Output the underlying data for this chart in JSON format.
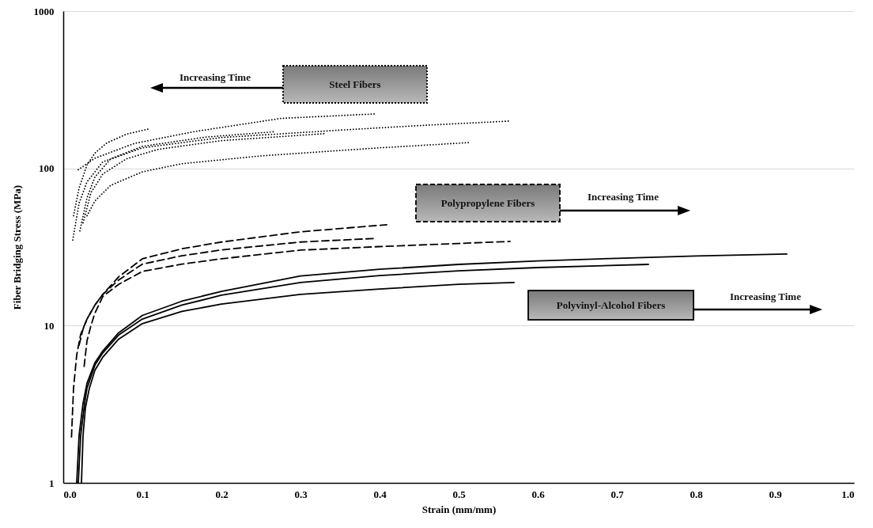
{
  "chart_data": {
    "type": "line",
    "xlabel": "Strain (mm/mm)",
    "ylabel": "Fiber Bridging Stress (MPa)",
    "xlim": [
      0,
      1
    ],
    "xticks": [
      {
        "value": 0,
        "label": "0.0"
      },
      0.1,
      0.2,
      0.3,
      0.4,
      0.5,
      0.6,
      0.7,
      0.8,
      0.9,
      {
        "value": 1,
        "label": "1.0"
      }
    ],
    "ylim": [
      1,
      1000
    ],
    "yticks": [
      1,
      10,
      100,
      1000
    ],
    "log": "y",
    "grid": "y",
    "annotations": [
      "Steel Fibers",
      "Increasing Time",
      "Polypropylene Fibers",
      "Increasing Time",
      "Polyvinyl-Alcohol Fibers",
      "Increasing Time"
    ],
    "series": [
      {
        "color": "#000000",
        "line_style": "dotted",
        "x": [
          0.013,
          0.02,
          0.03,
          0.04,
          0.055,
          0.08,
          0.108
        ],
        "values": [
          50,
          75,
          105,
          125,
          145,
          165,
          178
        ]
      },
      {
        "color": "#000000",
        "line_style": "dotted",
        "x": [
          0.019,
          0.04,
          0.09,
          0.165,
          0.276,
          0.395
        ],
        "values": [
          98,
          116,
          144,
          171,
          208,
          222
        ]
      },
      {
        "color": "#000000",
        "line_style": "dotted",
        "x": [
          0.012,
          0.02,
          0.03,
          0.05,
          0.1,
          0.2,
          0.35,
          0.45,
          0.565
        ],
        "values": [
          35,
          60,
          82,
          110,
          135,
          157,
          175,
          187,
          200
        ]
      },
      {
        "color": "#000000",
        "line_style": "dotted",
        "x": [
          0.021,
          0.03,
          0.04,
          0.06,
          0.1,
          0.18,
          0.267
        ],
        "values": [
          40,
          65,
          88,
          115,
          138,
          158,
          171
        ]
      },
      {
        "color": "#000000",
        "line_style": "dotted",
        "x": [
          0.025,
          0.035,
          0.05,
          0.08,
          0.12,
          0.2,
          0.33
        ],
        "values": [
          45,
          70,
          92,
          115,
          132,
          150,
          166
        ]
      },
      {
        "color": "#000000",
        "line_style": "dotted",
        "x": [
          0.03,
          0.04,
          0.06,
          0.1,
          0.15,
          0.25,
          0.4,
          0.515
        ],
        "values": [
          50,
          62,
          78,
          95,
          107,
          120,
          135,
          146
        ]
      },
      {
        "color": "#000000",
        "line_style": "dashed",
        "x": [
          0.0104,
          0.013,
          0.017,
          0.022,
          0.03,
          0.04,
          0.05,
          0.07,
          0.1,
          0.15,
          0.2,
          0.3,
          0.409
        ],
        "values": [
          1.96,
          4,
          6.5,
          8.8,
          11,
          13.5,
          15.8,
          20.4,
          26.6,
          30.8,
          34,
          39.5,
          43.8
        ]
      },
      {
        "color": "#000000",
        "line_style": "dashed",
        "x": [
          0.02,
          0.025,
          0.03,
          0.04,
          0.05,
          0.07,
          0.1,
          0.15,
          0.2,
          0.3,
          0.392
        ],
        "values": [
          7.5,
          9.5,
          11,
          13.5,
          15.8,
          19.5,
          24.6,
          27.8,
          30.3,
          34,
          35.8
        ]
      },
      {
        "color": "#000000",
        "line_style": "dashed",
        "x": [
          0.0264,
          0.03,
          0.035,
          0.04,
          0.05,
          0.07,
          0.1,
          0.15,
          0.2,
          0.3,
          0.4,
          0.5,
          0.565
        ],
        "values": [
          5.5,
          8,
          10,
          12,
          15.3,
          18.3,
          22.1,
          24.6,
          26.6,
          30.2,
          31.8,
          33.3,
          34.3
        ]
      },
      {
        "color": "#000000",
        "line_style": "solid",
        "x": [
          0.017,
          0.02,
          0.025,
          0.03,
          0.04,
          0.05,
          0.07,
          0.1,
          0.15,
          0.2,
          0.3,
          0.4,
          0.5,
          0.6,
          0.7,
          0.8,
          0.915
        ],
        "values": [
          1,
          2,
          3.2,
          4.3,
          5.8,
          6.9,
          9,
          11.6,
          14.3,
          16.5,
          20.7,
          22.8,
          24.5,
          25.8,
          26.8,
          27.7,
          28.5
        ]
      },
      {
        "color": "#000000",
        "line_style": "solid",
        "x": [
          0.019,
          0.022,
          0.027,
          0.03,
          0.04,
          0.05,
          0.07,
          0.1,
          0.15,
          0.2,
          0.3,
          0.4,
          0.5,
          0.6,
          0.74
        ],
        "values": [
          1,
          2,
          3.2,
          4,
          5.6,
          6.7,
          8.7,
          11,
          13.5,
          15.6,
          18.8,
          20.8,
          22.3,
          23.4,
          24.5
        ]
      },
      {
        "color": "#000000",
        "line_style": "solid",
        "x": [
          0.023,
          0.025,
          0.028,
          0.033,
          0.04,
          0.05,
          0.07,
          0.1,
          0.15,
          0.2,
          0.3,
          0.4,
          0.5,
          0.57
        ],
        "values": [
          1,
          2,
          3,
          4,
          5.2,
          6.3,
          8.2,
          10.3,
          12.3,
          13.7,
          15.8,
          17.1,
          18.3,
          18.8
        ]
      }
    ]
  }
}
